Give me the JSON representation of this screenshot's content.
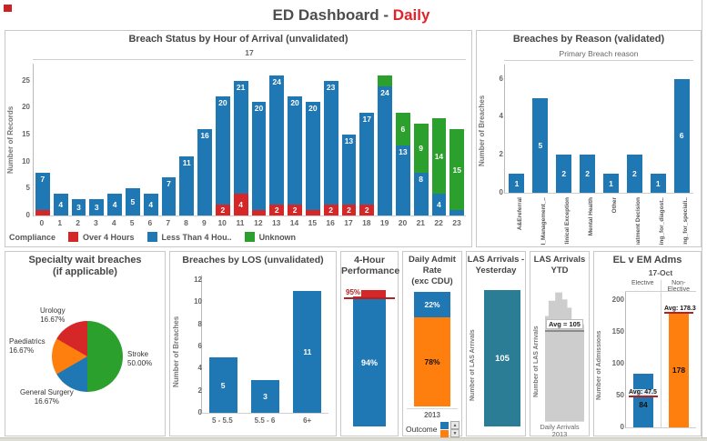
{
  "page_title": {
    "prefix": "ED Dashboard - ",
    "suffix": "Daily"
  },
  "colors": {
    "blue": "#1f77b4",
    "red": "#d62728",
    "green": "#2ca02c",
    "orange": "#ff7f0e",
    "teal": "#2b7c95",
    "gray_fill": "#cdcdcd",
    "ref_red": "#b22222",
    "avg_line_gray": "#8c8c8c",
    "title_red": "#e32227"
  },
  "chart_data": [
    {
      "id": "breach_by_hour",
      "type": "bar",
      "stacked": true,
      "title": "Breach Status by Hour of Arrival (unvalidated)",
      "column_header": "17",
      "ylabel": "Number of Records",
      "yticks": [
        0,
        5,
        10,
        15,
        20,
        25
      ],
      "ylim": [
        0,
        28.3
      ],
      "categories": [
        "0",
        "1",
        "2",
        "3",
        "4",
        "5",
        "6",
        "7",
        "8",
        "9",
        "10",
        "11",
        "12",
        "13",
        "14",
        "15",
        "16",
        "17",
        "18",
        "19",
        "20",
        "21",
        "22",
        "23"
      ],
      "series": [
        {
          "key": "over4",
          "name": "Over 4 Hours",
          "color_key": "red",
          "values": [
            1,
            0,
            0,
            0,
            0,
            0,
            0,
            0,
            0,
            0,
            2,
            4,
            1,
            2,
            2,
            1,
            2,
            2,
            2,
            0,
            0,
            0,
            0,
            0
          ],
          "labels": [
            "",
            "",
            "",
            "",
            "",
            "",
            "",
            "",
            "",
            "",
            "2",
            "4",
            "",
            "2",
            "2",
            "",
            "2",
            "2",
            "2",
            "",
            "",
            "",
            "",
            ""
          ]
        },
        {
          "key": "under4",
          "name": "Less Than 4 Hou..",
          "color_key": "blue",
          "values": [
            7,
            4,
            3,
            3,
            4,
            5,
            4,
            7,
            11,
            16,
            20,
            21,
            20,
            24,
            20,
            20,
            23,
            13,
            17,
            24,
            13,
            8,
            4,
            1
          ],
          "labels": [
            "7",
            "4",
            "3",
            "3",
            "4",
            "5",
            "4",
            "7",
            "11",
            "16",
            "20",
            "21",
            "20",
            "24",
            "20",
            "20",
            "23",
            "13",
            "17",
            "24",
            "13",
            "8",
            "4",
            ""
          ]
        },
        {
          "key": "unknown",
          "name": "Unknown",
          "color_key": "green",
          "values": [
            0,
            0,
            0,
            0,
            0,
            0,
            0,
            0,
            0,
            0,
            0,
            0,
            0,
            0,
            0,
            0,
            0,
            0,
            0,
            2,
            6,
            9,
            14,
            15
          ],
          "labels": [
            "",
            "",
            "",
            "",
            "",
            "",
            "",
            "",
            "",
            "",
            "",
            "",
            "",
            "",
            "",
            "",
            "",
            "",
            "",
            "",
            "6",
            "9",
            "14",
            "15"
          ]
        }
      ],
      "legend_title": "Compliance",
      "grid": false,
      "legend_position": "bottom"
    },
    {
      "id": "breaches_by_reason",
      "type": "bar",
      "title": "Breaches by Reason (validated)",
      "column_header": "Primary Breach reason",
      "ylabel": "Number of Breaches",
      "yticks": [
        0,
        2,
        4,
        6
      ],
      "ylim": [
        0,
        6.8
      ],
      "categories": [
        "A&Ereferral",
        "Bed_Management_..",
        "Clinical Exception",
        "Mental Health",
        "Other",
        "Treatment Decision",
        "Waiting_for_diagost..",
        "Waiting_for_speciali.."
      ],
      "values": [
        1,
        5,
        2,
        2,
        1,
        2,
        1,
        6
      ],
      "bar_labels": [
        "1",
        "5",
        "2",
        "2",
        "1",
        "2",
        "1",
        "6"
      ]
    },
    {
      "id": "specialty_pie",
      "type": "pie",
      "title_line1": "Specialty wait breaches",
      "title_line2": "(if applicable)",
      "slices": [
        {
          "label": "Stroke",
          "pct_label": "50.00%",
          "value": 50.0,
          "color_key": "green"
        },
        {
          "label": "General Surgery",
          "pct_label": "16.67%",
          "value": 16.67,
          "color_key": "blue"
        },
        {
          "label": "Paediatrics",
          "pct_label": "16.67%",
          "value": 16.67,
          "color_key": "orange"
        },
        {
          "label": "Urology",
          "pct_label": "16.67%",
          "value": 16.67,
          "color_key": "red"
        }
      ]
    },
    {
      "id": "breaches_by_los",
      "type": "bar",
      "title": "Breaches by LOS (unvalidated)",
      "ylabel": "Number of Breaches",
      "yticks": [
        0,
        2,
        4,
        6,
        8,
        10,
        12
      ],
      "ylim": [
        0,
        12.5
      ],
      "categories": [
        "5 - 5.5",
        "5.5 - 6",
        "6+"
      ],
      "values": [
        5,
        3,
        11
      ],
      "bar_labels": [
        "5",
        "3",
        "11"
      ]
    },
    {
      "id": "four_hour_performance",
      "type": "bar",
      "stacked": true,
      "title_line1": "4-Hour",
      "title_line2": "Performance",
      "segments": [
        {
          "label": "94%",
          "value": 94,
          "color_key": "blue"
        },
        {
          "label": "",
          "value": 6,
          "color_key": "red"
        }
      ],
      "ref_line": {
        "label": "95%",
        "value": 95
      },
      "ylim": [
        0,
        100
      ]
    },
    {
      "id": "daily_admit_rate",
      "type": "bar",
      "stacked": true,
      "title_line1": "Daily Admit Rate",
      "title_line2": "(exc CDU)",
      "xlabel": "2013",
      "segments": [
        {
          "label": "78%",
          "value": 78,
          "color_key": "orange",
          "label_color": "#111111"
        },
        {
          "label": "22%",
          "value": 22,
          "color_key": "blue",
          "label_color": "#ffffff"
        }
      ],
      "legend_title": "Outcome",
      "ylim": [
        0,
        100
      ]
    },
    {
      "id": "las_yesterday",
      "type": "bar",
      "title_line1": "LAS Arrivals -",
      "title_line2": "Yesterday",
      "ylabel": "Number of LAS Arrivals",
      "value": 105,
      "bar_label": "105",
      "color_key": "teal"
    },
    {
      "id": "las_ytd",
      "type": "area",
      "title_line1": "LAS Arrivals",
      "title_line2": "YTD",
      "ylabel": "Number of LAS Arrivals",
      "xlabel_line1": "Daily Arrivals",
      "xlabel_line2": "2013",
      "annotation": "Avg = 105",
      "avg_value": 105
    },
    {
      "id": "el_v_em",
      "type": "bar",
      "title": "EL v EM Adms",
      "column_header": "17-Oct",
      "ylabel": "Number of Admissions",
      "yticks": [
        0,
        50,
        100,
        150,
        200
      ],
      "ylim": [
        0,
        214
      ],
      "categories": [
        "Elective",
        "Non-Elective"
      ],
      "values": [
        84,
        178
      ],
      "bar_labels": [
        "84",
        "178"
      ],
      "bar_color_keys": [
        "blue",
        "orange"
      ],
      "ref_lines": [
        {
          "label": "Avg: 47.5",
          "value": 47.5
        },
        {
          "label": "Avg: 178.3",
          "value": 178.3
        }
      ]
    }
  ]
}
